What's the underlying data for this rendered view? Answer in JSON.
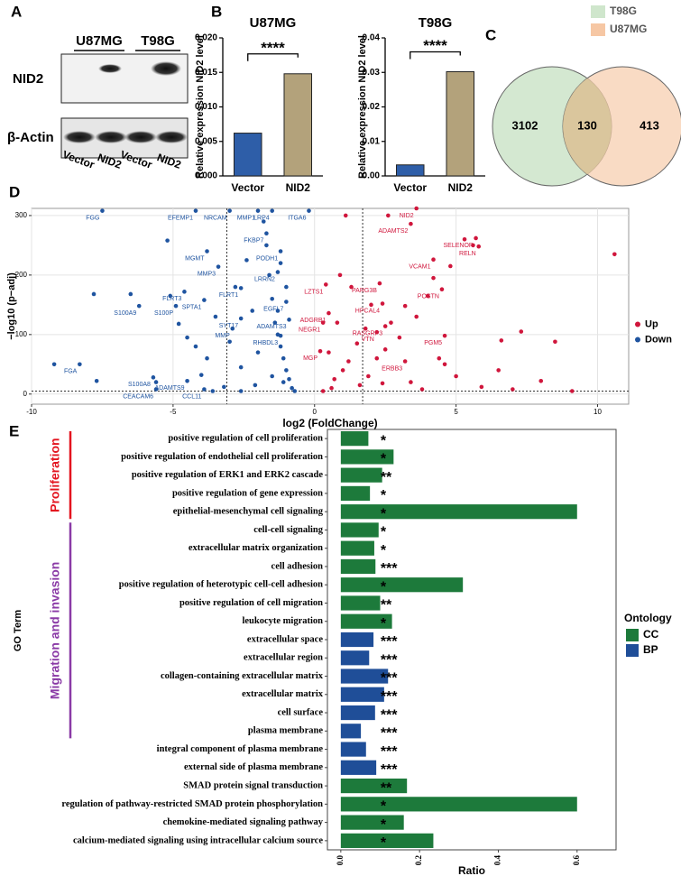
{
  "panel_labels": [
    "A",
    "B",
    "C",
    "D",
    "E"
  ],
  "blot": {
    "cell_lines": [
      "U87MG",
      "T98G"
    ],
    "proteins": [
      "NID2",
      "β-Actin"
    ],
    "lanes": [
      "Vector",
      "NID2",
      "Vector",
      "NID2"
    ]
  },
  "chart_data": [
    {
      "type": "bar",
      "title": "U87MG",
      "y_label": "Relative expression NID2 level",
      "categories": [
        "Vector",
        "NID2"
      ],
      "values": [
        0.0062,
        0.0148
      ],
      "colors": [
        "#2e5ea8",
        "#b3a27b"
      ],
      "ylim": [
        0,
        0.02
      ],
      "yticks": [
        {
          "value": 0,
          "label": "0.000"
        },
        {
          "value": 0.005,
          "label": "0.005"
        },
        {
          "value": 0.01,
          "label": "0.010"
        },
        {
          "value": 0.015,
          "label": "0.015"
        },
        {
          "value": 0.02,
          "label": "0.020"
        }
      ],
      "significance": "****"
    },
    {
      "type": "bar",
      "title": "T98G",
      "y_label": "Relative expression NID2 level",
      "categories": [
        "Vector",
        "NID2"
      ],
      "values": [
        0.0032,
        0.0302
      ],
      "colors": [
        "#2e5ea8",
        "#b3a27b"
      ],
      "ylim": [
        0,
        0.04
      ],
      "yticks": [
        {
          "value": 0,
          "label": "0.00"
        },
        {
          "value": 0.01,
          "label": "0.01"
        },
        {
          "value": 0.02,
          "label": "0.02"
        },
        {
          "value": 0.03,
          "label": "0.03"
        },
        {
          "value": 0.04,
          "label": "0.04"
        }
      ],
      "significance": "****"
    },
    {
      "type": "venn",
      "sets": [
        {
          "name": "T98G",
          "color": "#cfe6cc"
        },
        {
          "name": "U87MG",
          "color": "#f6c7a4"
        }
      ],
      "values": [
        3102,
        130,
        413
      ]
    },
    {
      "type": "scatter",
      "x_label": "log2 (FoldChange)",
      "y_label": "−log10 (p−adj)",
      "xlim": [
        -10,
        11.1
      ],
      "ylim": [
        -17,
        312
      ],
      "xticks": [
        -10,
        -5,
        0,
        5,
        10
      ],
      "yticks": [
        0,
        100,
        200,
        300
      ],
      "grid": true,
      "legend": "right",
      "thresholds": {
        "x": [
          -3.1,
          1.7
        ],
        "y": 5
      },
      "series": [
        {
          "name": "Up",
          "color": "#d0163c",
          "x": [
            10.6,
            8.5,
            7.3,
            6.6,
            5.6,
            5.3,
            4.8,
            4.2,
            4.0,
            3.6,
            3.2,
            3.0,
            2.7,
            2.5,
            2.2,
            2.0,
            1.8,
            1.5,
            1.3,
            1.2,
            1.0,
            0.8,
            0.7,
            0.6,
            0.5,
            0.3,
            1.9,
            2.4,
            3.4,
            4.6,
            5.0,
            5.9,
            6.5,
            7.0,
            8.0,
            9.1,
            1.1,
            2.6,
            0.9,
            1.6,
            3.8,
            4.4,
            3.6,
            3.4,
            5.7,
            5.8,
            4.2,
            2.3,
            0.4,
            4.5,
            2.4,
            0.5,
            0.3,
            2.5,
            2.2,
            4.6,
            0.2,
            3.2
          ],
          "values": [
            235,
            88,
            105,
            90,
            250,
            260,
            215,
            195,
            165,
            130,
            148,
            95,
            120,
            75,
            60,
            150,
            110,
            85,
            180,
            55,
            40,
            120,
            25,
            10,
            70,
            5,
            30,
            18,
            20,
            50,
            30,
            12,
            40,
            8,
            22,
            5,
            300,
            300,
            200,
            15,
            8,
            60,
            312,
            286,
            262,
            248,
            226,
            186,
            184,
            176,
            152,
            136,
            120,
            114,
            104,
            98,
            72,
            55
          ],
          "labels": [
            null,
            null,
            null,
            null,
            null,
            null,
            null,
            null,
            null,
            null,
            null,
            null,
            null,
            null,
            null,
            null,
            null,
            null,
            null,
            null,
            null,
            null,
            null,
            null,
            null,
            null,
            null,
            null,
            null,
            null,
            null,
            null,
            null,
            null,
            null,
            null,
            null,
            null,
            null,
            null,
            null,
            null,
            "NID2",
            "ADAMTS2",
            "SELENOP",
            "RELN",
            "VCAM1",
            "PARG3B",
            "LZTS1",
            "POSTN",
            "HPCAL4",
            "ADGRB1",
            "NEGR1",
            "RASGRP3",
            "VTN",
            "PGM5",
            "MGP",
            "ERBB3"
          ]
        },
        {
          "name": "Down",
          "color": "#1f54a0",
          "x": [
            -9.2,
            -7.7,
            -7.8,
            -6.5,
            -5.6,
            -5.2,
            -5.1,
            -4.8,
            -4.5,
            -4.2,
            -4.0,
            -3.8,
            -3.5,
            -3.2,
            -3.0,
            -2.8,
            -2.6,
            -2.4,
            -2.2,
            -2.0,
            -1.8,
            -1.7,
            -1.6,
            -1.5,
            -1.4,
            -1.3,
            -1.2,
            -1.1,
            -1.0,
            -0.9,
            -0.8,
            -1.5,
            -2.1,
            -2.6,
            -3.6,
            -1.2,
            -1.0,
            -1.3,
            -1.1,
            -0.7,
            -7.5,
            -4.2,
            -3.0,
            -2.0,
            -1.5,
            -0.2,
            -3.8,
            -1.7,
            -1.2,
            -3.4,
            -1.3,
            -4.6,
            -2.6,
            -3.9,
            -6.2,
            -4.9,
            -2.6,
            -1.0,
            -0.9,
            -2.9,
            -1.2,
            -8.3,
            -5.7,
            -4.5,
            -5.6,
            -3.9
          ],
          "values": [
            50,
            22,
            168,
            168,
            20,
            258,
            165,
            118,
            95,
            80,
            32,
            60,
            130,
            12,
            88,
            180,
            45,
            225,
            140,
            70,
            290,
            250,
            200,
            160,
            120,
            100,
            80,
            60,
            40,
            25,
            10,
            30,
            15,
            5,
            5,
            220,
            180,
            140,
            20,
            5,
            308,
            308,
            308,
            308,
            308,
            308,
            240,
            270,
            240,
            214,
            205,
            172,
            178,
            158,
            148,
            148,
            127,
            155,
            125,
            110,
            98,
            50,
            28,
            22,
            8,
            8
          ],
          "labels": [
            null,
            null,
            null,
            null,
            null,
            null,
            null,
            null,
            null,
            null,
            null,
            null,
            null,
            null,
            null,
            null,
            null,
            null,
            null,
            null,
            null,
            null,
            null,
            null,
            null,
            null,
            null,
            null,
            null,
            null,
            null,
            null,
            null,
            null,
            null,
            null,
            null,
            null,
            null,
            null,
            "FGG",
            "EFEMP1",
            "NRCAM",
            "MMP1",
            "LRP4",
            "ITGA6",
            "MGMT",
            "FKBP7",
            "PODH1",
            "MMP3",
            "LRRN2",
            "FLRT3",
            "FLRT1",
            "SPTA1",
            "S100A9",
            "S100P",
            "SYT17",
            "EGFL7",
            "ADAMTS3",
            "MMP",
            "RHBDL3",
            "FGA",
            "S100A8",
            "ADAMTS9",
            "CEACAM6",
            "CCL11"
          ]
        }
      ]
    },
    {
      "type": "hbar",
      "x_label": "Ratio",
      "y_label": "GO Term",
      "legend_title": "Ontology",
      "groups": [
        {
          "name": "CC",
          "color": "#1d7a3b"
        },
        {
          "name": "BP",
          "color": "#1f4e98"
        }
      ],
      "categories": [
        "positive regulation of cell proliferation",
        "positive regulation of endothelial cell proliferation",
        "positive regulation of ERK1 and ERK2 cascade",
        "positive regulation of gene expression",
        "epithelial-mesenchymal cell signaling",
        "cell-cell signaling",
        "extracellular matrix organization",
        "cell adhesion",
        "positive regulation of heterotypic cell-cell adhesion",
        "positive regulation of cell migration",
        "leukocyte migration",
        "extracellular space",
        "extracellular region",
        "collagen-containing extracellular matrix",
        "extracellular matrix",
        "cell surface",
        "plasma membrane",
        "integral component of plasma membrane",
        "external side of plasma membrane",
        "SMAD protein signal transduction",
        "regulation of pathway-restricted SMAD protein phosphorylation",
        "chemokine-mediated signaling pathway",
        "calcium-mediated signaling using intracellular calcium source"
      ],
      "values": [
        0.07,
        0.134,
        0.105,
        0.074,
        0.6,
        0.096,
        0.085,
        0.088,
        0.31,
        0.1,
        0.13,
        0.083,
        0.072,
        0.12,
        0.11,
        0.087,
        0.051,
        0.064,
        0.09,
        0.168,
        0.6,
        0.16,
        0.235
      ],
      "ontology": [
        "CC",
        "CC",
        "CC",
        "CC",
        "CC",
        "CC",
        "CC",
        "CC",
        "CC",
        "CC",
        "CC",
        "BP",
        "BP",
        "BP",
        "BP",
        "BP",
        "BP",
        "BP",
        "BP",
        "CC",
        "CC",
        "CC",
        "CC"
      ],
      "significance": [
        "*",
        "*",
        "**",
        "*",
        "*",
        "*",
        "*",
        "***",
        "*",
        "**",
        "*",
        "***",
        "***",
        "***",
        "***",
        "***",
        "***",
        "***",
        "***",
        "**",
        "*",
        "*",
        "*"
      ],
      "xlim": [
        -0.034,
        0.699
      ],
      "xticks": [
        {
          "value": 0,
          "label": "0.0"
        },
        {
          "value": 0.2,
          "label": "0.2"
        },
        {
          "value": 0.4,
          "label": "0.4"
        },
        {
          "value": 0.6,
          "label": "0.6"
        }
      ],
      "brackets": [
        {
          "text": "Proliferation",
          "color": "#e3141f",
          "from": 0,
          "to": 4
        },
        {
          "text": "Migration and invasion",
          "color": "#8a3aa6",
          "from": 5,
          "to": 16
        }
      ]
    }
  ]
}
